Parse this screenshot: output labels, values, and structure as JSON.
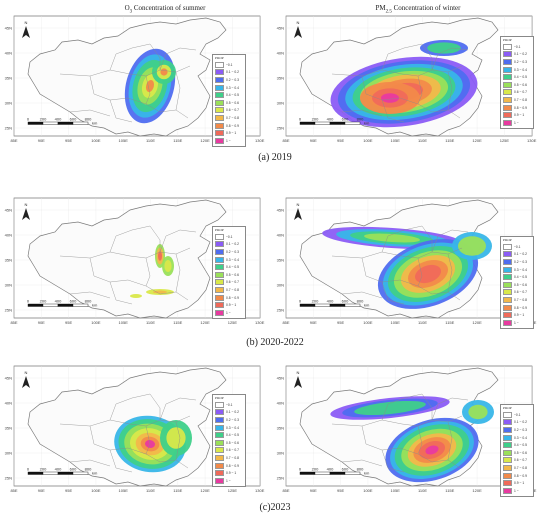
{
  "columns": {
    "left_title_prefix": "O",
    "left_title_sub": "3",
    "left_title_suffix": " Concentration of summer",
    "right_title_prefix": "PM",
    "right_title_sub": "2.5",
    "right_title_suffix": " Concentration of winter"
  },
  "rows": [
    {
      "caption": "(a) 2019"
    },
    {
      "caption": "(b) 2020-2022"
    },
    {
      "caption": "(c)2023"
    }
  ],
  "map": {
    "lon_ticks": [
      "85E",
      "90E",
      "95E",
      "100E",
      "105E",
      "110E",
      "115E",
      "120E",
      "125E",
      "130E"
    ],
    "lat_ticks": [
      "45N",
      "40N",
      "35N",
      "30N",
      "25N"
    ],
    "north_label": "N",
    "scale_labels": [
      "0",
      "200",
      "400",
      "600",
      "800"
    ],
    "scale_unit": "km",
    "boundary_color": "#7a7a7a"
  },
  "legend": {
    "title": "PROP",
    "entries": [
      {
        "label": "~0.1",
        "color": "#ffffff"
      },
      {
        "label": "0.1 ~ 0.2",
        "color": "#8b5cf6"
      },
      {
        "label": "0.2 ~ 0.3",
        "color": "#4f6df0"
      },
      {
        "label": "0.3 ~ 0.4",
        "color": "#38b6e8"
      },
      {
        "label": "0.4 ~ 0.5",
        "color": "#3fd08a"
      },
      {
        "label": "0.5 ~ 0.6",
        "color": "#9ae05a"
      },
      {
        "label": "0.6 ~ 0.7",
        "color": "#d9e84a"
      },
      {
        "label": "0.7 ~ 0.8",
        "color": "#f2b84a"
      },
      {
        "label": "0.8 ~ 0.9",
        "color": "#f28a4a"
      },
      {
        "label": "0.9 ~ 1",
        "color": "#f06a5a"
      },
      {
        "label": "1 ~",
        "color": "#e83aa0"
      }
    ]
  }
}
